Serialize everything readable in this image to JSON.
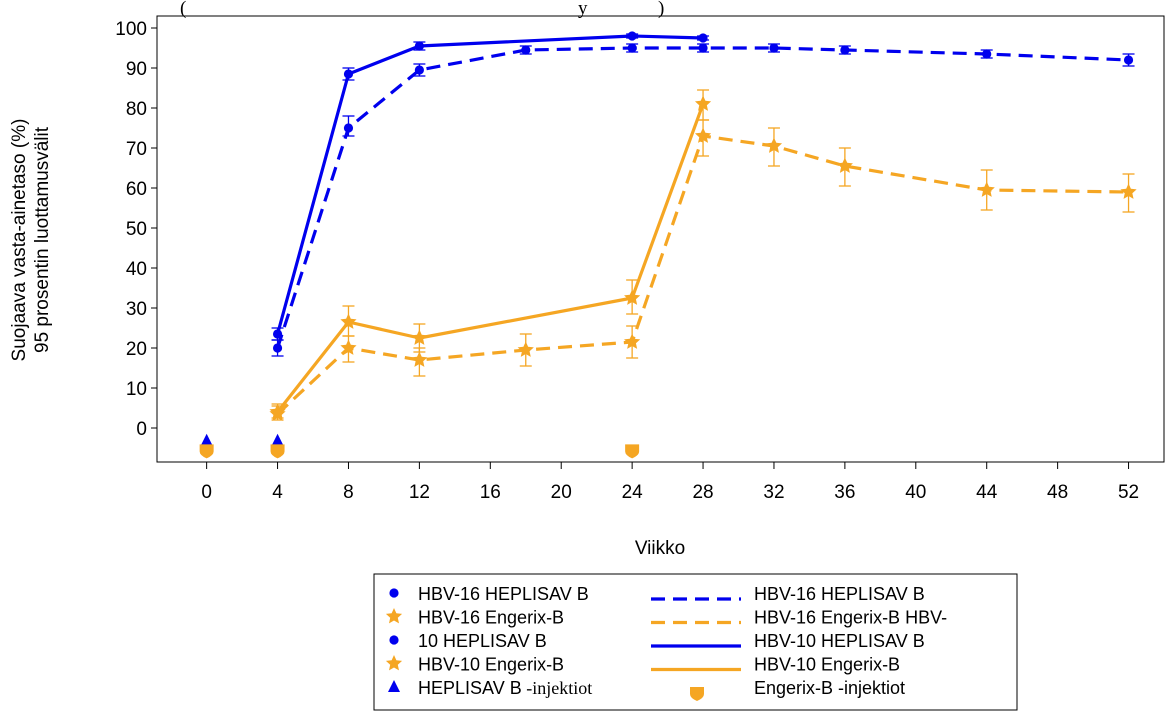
{
  "chart_data": {
    "type": "line",
    "top_text": "(",
    "top_text_right": "y",
    "top_text_close": ")",
    "ylabel_line1": "Suojaava vasta-ainetaso (%)",
    "ylabel_line2": "95 prosentin luottamusvälit",
    "xlabel": "Viikko",
    "x_ticks": [
      0,
      4,
      8,
      12,
      16,
      20,
      24,
      28,
      32,
      36,
      40,
      44,
      48,
      52
    ],
    "y_ticks": [
      0,
      10,
      20,
      30,
      40,
      50,
      60,
      70,
      80,
      90,
      100
    ],
    "xlim": [
      -2.8,
      54
    ],
    "ylim": [
      -8.5,
      103
    ],
    "grid": false,
    "series": [
      {
        "key": "hbv16-heplisav",
        "color": "#0000ee",
        "dash": true,
        "marker": "circle",
        "points": [
          {
            "x": 4,
            "y": 20,
            "lo": 18,
            "hi": 22
          },
          {
            "x": 8,
            "y": 75,
            "lo": 73,
            "hi": 78
          },
          {
            "x": 12,
            "y": 89.5,
            "lo": 88,
            "hi": 91
          },
          {
            "x": 18,
            "y": 94.5,
            "lo": 93.5,
            "hi": 95.5
          },
          {
            "x": 24,
            "y": 95,
            "lo": 94,
            "hi": 96
          },
          {
            "x": 28,
            "y": 95,
            "lo": 94,
            "hi": 96
          },
          {
            "x": 32,
            "y": 95,
            "lo": 94,
            "hi": 96
          },
          {
            "x": 36,
            "y": 94.5,
            "lo": 93.5,
            "hi": 95.5
          },
          {
            "x": 44,
            "y": 93.5,
            "lo": 92.5,
            "hi": 94.5
          },
          {
            "x": 52,
            "y": 92,
            "lo": 90.5,
            "hi": 93.5
          }
        ]
      },
      {
        "key": "hbv16-engerix",
        "color": "#f5a623",
        "dash": true,
        "marker": "star",
        "points": [
          {
            "x": 4,
            "y": 3.5,
            "lo": 2,
            "hi": 5.5
          },
          {
            "x": 8,
            "y": 20,
            "lo": 16.5,
            "hi": 23
          },
          {
            "x": 12,
            "y": 17,
            "lo": 13,
            "hi": 20
          },
          {
            "x": 18,
            "y": 19.5,
            "lo": 15.5,
            "hi": 23.5
          },
          {
            "x": 24,
            "y": 21.5,
            "lo": 17.5,
            "hi": 25.5
          },
          {
            "x": 28,
            "y": 73,
            "lo": 68,
            "hi": 77
          },
          {
            "x": 32,
            "y": 70.5,
            "lo": 65.5,
            "hi": 75
          },
          {
            "x": 36,
            "y": 65.5,
            "lo": 60.5,
            "hi": 70
          },
          {
            "x": 44,
            "y": 59.5,
            "lo": 54.5,
            "hi": 64.5
          },
          {
            "x": 52,
            "y": 59,
            "lo": 54,
            "hi": 63.5
          }
        ]
      },
      {
        "key": "hbv10-heplisav",
        "color": "#0000ee",
        "dash": false,
        "marker": "circle",
        "points": [
          {
            "x": 4,
            "y": 23.5,
            "lo": 22,
            "hi": 25
          },
          {
            "x": 8,
            "y": 88.5,
            "lo": 87,
            "hi": 90
          },
          {
            "x": 12,
            "y": 95.5,
            "lo": 94.5,
            "hi": 96.5
          },
          {
            "x": 24,
            "y": 98,
            "lo": 97.5,
            "hi": 98.5
          },
          {
            "x": 28,
            "y": 97.5,
            "lo": 97,
            "hi": 98
          }
        ]
      },
      {
        "key": "hbv10-engerix",
        "color": "#f5a623",
        "dash": false,
        "marker": "star",
        "points": [
          {
            "x": 4,
            "y": 4,
            "lo": 2.5,
            "hi": 6
          },
          {
            "x": 8,
            "y": 26.5,
            "lo": 23,
            "hi": 30.5
          },
          {
            "x": 12,
            "y": 22.5,
            "lo": 19,
            "hi": 26
          },
          {
            "x": 24,
            "y": 32.5,
            "lo": 28.5,
            "hi": 37
          },
          {
            "x": 28,
            "y": 81,
            "lo": 77,
            "hi": 84.5
          }
        ]
      }
    ],
    "injections": [
      {
        "key": "heplisav",
        "marker": "triangle",
        "color": "#0000ee",
        "x": [
          0,
          4
        ],
        "y": -3.2
      },
      {
        "key": "engerix",
        "marker": "shield",
        "color": "#f5a623",
        "x": [
          0,
          4,
          24
        ],
        "y": -5.6
      }
    ],
    "legend": {
      "placement": "bottom",
      "left_entries": [
        {
          "marker": "circle",
          "color": "#0000ee",
          "text": "HBV-16 HEPLISAV B"
        },
        {
          "marker": "star",
          "color": "#f5a623",
          "text": "HBV-16 Engerix-B"
        },
        {
          "marker": "circle",
          "color": "#0000ee",
          "text": "10 HEPLISAV B"
        },
        {
          "marker": "star",
          "color": "#f5a623",
          "text": "HBV-10 Engerix-B"
        },
        {
          "marker": "triangle",
          "color": "#0000ee",
          "text": "HEPLISAV B",
          "suffix": " -injektiot"
        }
      ],
      "right_entries": [
        {
          "line": "dash",
          "color": "#0000ee",
          "text": "HBV-16 HEPLISAV B"
        },
        {
          "line": "dash",
          "color": "#f5a623",
          "text": "HBV-16 Engerix-B  HBV-"
        },
        {
          "line": "solid",
          "color": "#0000ee",
          "text": "HBV-10 HEPLISAV B"
        },
        {
          "line": "solid",
          "color": "#f5a623",
          "text": "HBV-10 Engerix-B"
        },
        {
          "marker": "shield",
          "color": "#f5a623",
          "text": "Engerix-B -injektiot"
        }
      ]
    }
  }
}
